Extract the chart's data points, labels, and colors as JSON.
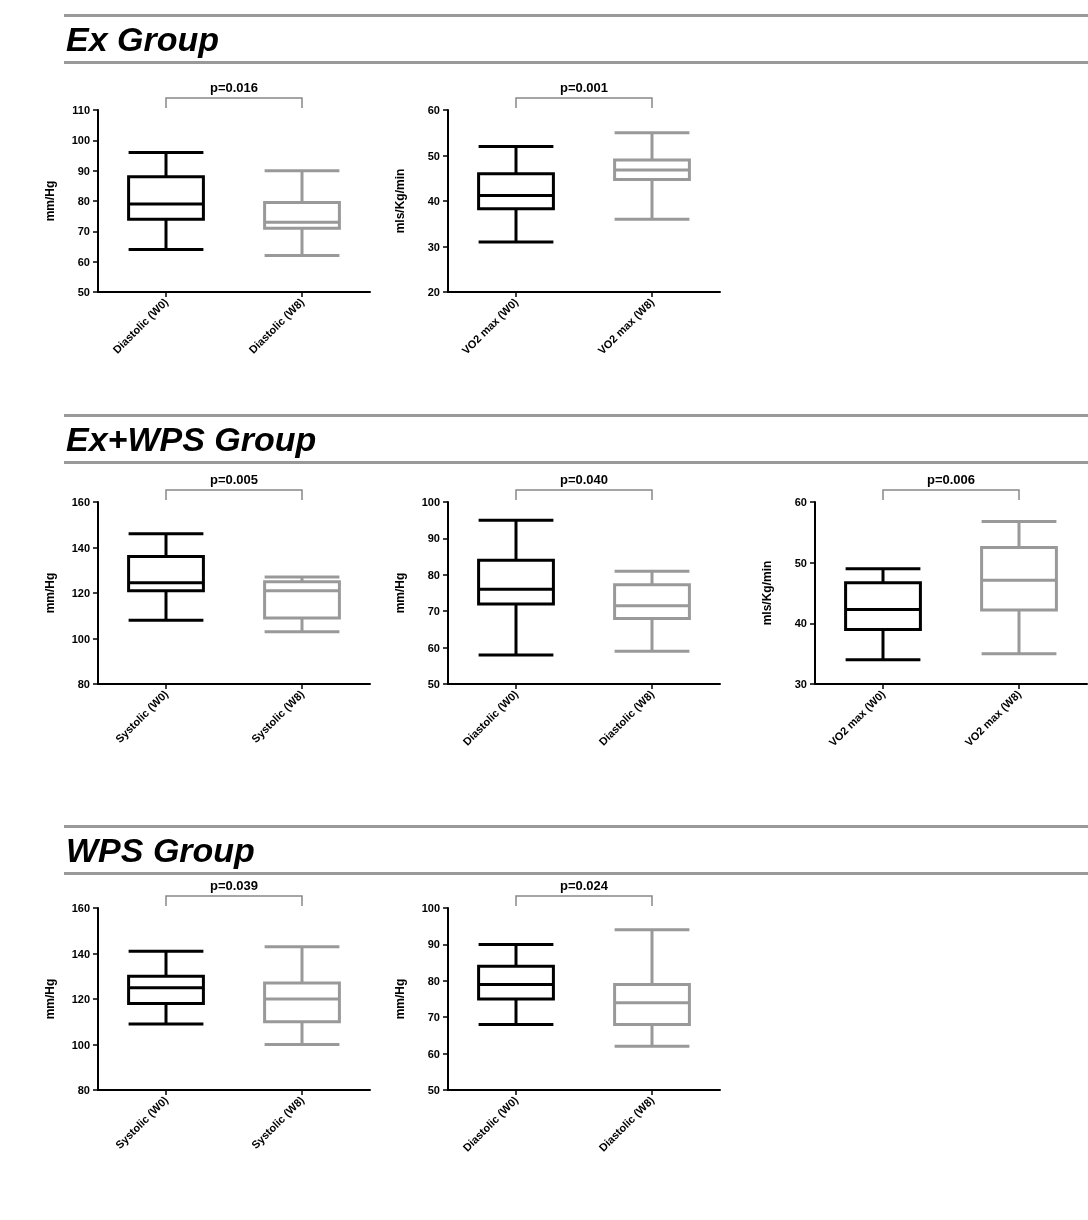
{
  "chart_data": [
    {
      "type": "box",
      "title": "Ex Group",
      "ylabel": "mm/Hg",
      "categories": [
        "Diastolic (W0)",
        "Diastolic (W8)"
      ],
      "colors": [
        "#000000",
        "#999999"
      ],
      "ylim": [
        50,
        110
      ],
      "yticks": [
        50,
        60,
        70,
        80,
        90,
        100,
        110
      ],
      "annotations": [
        "p=0.016"
      ],
      "boxes": [
        {
          "low": 64,
          "q1": 74,
          "median": 79,
          "q3": 88,
          "high": 96
        },
        {
          "low": 62,
          "q1": 71,
          "median": 73,
          "q3": 79.5,
          "high": 90
        }
      ]
    },
    {
      "type": "box",
      "ylabel": "mls/Kg/min",
      "categories": [
        "VO2 max (W0)",
        "VO2 max (W8)"
      ],
      "colors": [
        "#000000",
        "#999999"
      ],
      "ylim": [
        20,
        60
      ],
      "yticks": [
        20,
        30,
        40,
        50,
        60
      ],
      "annotations": [
        "p=0.001"
      ],
      "boxes": [
        {
          "low": 31,
          "q1": 38.3,
          "median": 41.2,
          "q3": 46,
          "high": 52
        },
        {
          "low": 36,
          "q1": 44.7,
          "median": 46.8,
          "q3": 49,
          "high": 55
        }
      ]
    },
    {
      "type": "box",
      "title": "Ex+WPS Group",
      "ylabel": "mm/Hg",
      "categories": [
        "Systolic (W0)",
        "Systolic (W8)"
      ],
      "colors": [
        "#000000",
        "#999999"
      ],
      "ylim": [
        80,
        160
      ],
      "yticks": [
        80,
        100,
        120,
        140,
        160
      ],
      "annotations": [
        "p=0.005"
      ],
      "boxes": [
        {
          "low": 108,
          "q1": 121,
          "median": 124.5,
          "q3": 136,
          "high": 146
        },
        {
          "low": 103,
          "q1": 109,
          "median": 121,
          "q3": 125,
          "high": 127
        }
      ]
    },
    {
      "type": "box",
      "ylabel": "mm/Hg",
      "categories": [
        "Diastolic (W0)",
        "Diastolic (W8)"
      ],
      "colors": [
        "#000000",
        "#999999"
      ],
      "ylim": [
        50,
        100
      ],
      "yticks": [
        50,
        60,
        70,
        80,
        90,
        100
      ],
      "annotations": [
        "p=0.040"
      ],
      "boxes": [
        {
          "low": 58,
          "q1": 72,
          "median": 76,
          "q3": 84,
          "high": 95
        },
        {
          "low": 59,
          "q1": 68,
          "median": 71.5,
          "q3": 77.3,
          "high": 81
        }
      ]
    },
    {
      "type": "box",
      "ylabel": "mls/Kg/min",
      "categories": [
        "VO2 max (W0)",
        "VO2 max (W8)"
      ],
      "colors": [
        "#000000",
        "#999999"
      ],
      "ylim": [
        30,
        60
      ],
      "yticks": [
        30,
        40,
        50,
        60
      ],
      "annotations": [
        "p=0.006"
      ],
      "boxes": [
        {
          "low": 34,
          "q1": 39,
          "median": 42.3,
          "q3": 46.7,
          "high": 49
        },
        {
          "low": 35,
          "q1": 42.2,
          "median": 47.1,
          "q3": 52.5,
          "high": 56.8
        }
      ]
    },
    {
      "type": "box",
      "title": "WPS Group",
      "ylabel": "mm/Hg",
      "categories": [
        "Systolic (W0)",
        "Systolic (W8)"
      ],
      "colors": [
        "#000000",
        "#999999"
      ],
      "ylim": [
        80,
        160
      ],
      "yticks": [
        80,
        100,
        120,
        140,
        160
      ],
      "annotations": [
        "p=0.039"
      ],
      "boxes": [
        {
          "low": 109,
          "q1": 118,
          "median": 125,
          "q3": 130,
          "high": 141
        },
        {
          "low": 100,
          "q1": 110,
          "median": 120,
          "q3": 127,
          "high": 143
        }
      ]
    },
    {
      "type": "box",
      "ylabel": "mm/Hg",
      "categories": [
        "Diastolic (W0)",
        "Diastolic (W8)"
      ],
      "colors": [
        "#000000",
        "#999999"
      ],
      "ylim": [
        50,
        100
      ],
      "yticks": [
        50,
        60,
        70,
        80,
        90,
        100
      ],
      "annotations": [
        "p=0.024"
      ],
      "boxes": [
        {
          "low": 68,
          "q1": 75,
          "median": 79,
          "q3": 84,
          "high": 90
        },
        {
          "low": 62,
          "q1": 68,
          "median": 74,
          "q3": 79,
          "high": 94
        }
      ]
    }
  ]
}
